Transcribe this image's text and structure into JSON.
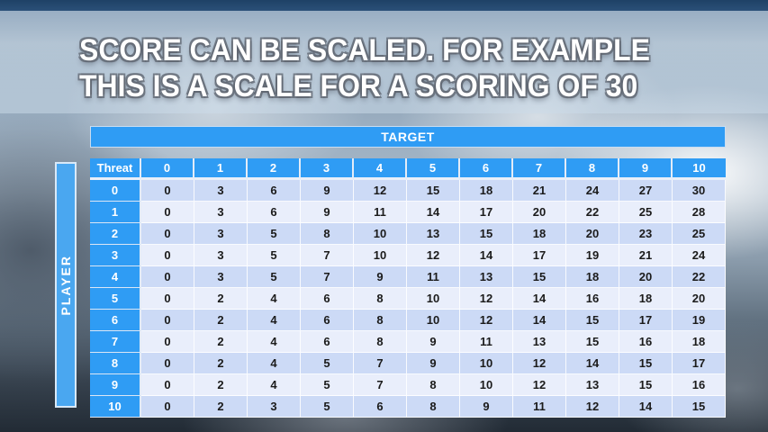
{
  "slide": {
    "title_line1": "SCORE CAN BE SCALED. FOR EXAMPLE",
    "title_line2": "THIS IS A SCALE FOR A SCORING OF 30"
  },
  "table": {
    "target_label": "TARGET",
    "player_label": "PLAYER",
    "threat_label": "Threat",
    "column_headers": [
      "0",
      "1",
      "2",
      "3",
      "4",
      "5",
      "6",
      "7",
      "8",
      "9",
      "10"
    ],
    "row_headers": [
      "0",
      "1",
      "2",
      "3",
      "4",
      "5",
      "6",
      "7",
      "8",
      "9",
      "10"
    ],
    "rows": [
      [
        0,
        3,
        6,
        9,
        12,
        15,
        18,
        21,
        24,
        27,
        30
      ],
      [
        0,
        3,
        6,
        9,
        11,
        14,
        17,
        20,
        22,
        25,
        28
      ],
      [
        0,
        3,
        5,
        8,
        10,
        13,
        15,
        18,
        20,
        23,
        25
      ],
      [
        0,
        3,
        5,
        7,
        10,
        12,
        14,
        17,
        19,
        21,
        24
      ],
      [
        0,
        3,
        5,
        7,
        9,
        11,
        13,
        15,
        18,
        20,
        22
      ],
      [
        0,
        2,
        4,
        6,
        8,
        10,
        12,
        14,
        16,
        18,
        20
      ],
      [
        0,
        2,
        4,
        6,
        8,
        10,
        12,
        14,
        15,
        17,
        19
      ],
      [
        0,
        2,
        4,
        6,
        8,
        9,
        11,
        13,
        15,
        16,
        18
      ],
      [
        0,
        2,
        4,
        5,
        7,
        9,
        10,
        12,
        14,
        15,
        17
      ],
      [
        0,
        2,
        4,
        5,
        7,
        8,
        10,
        12,
        13,
        15,
        16
      ],
      [
        0,
        2,
        3,
        5,
        6,
        8,
        9,
        11,
        12,
        14,
        15
      ]
    ]
  },
  "colors": {
    "header_blue": "#2f9cf4",
    "player_blue": "#4aa7f0",
    "row_even": "#ccdaf6",
    "row_odd": "#e9eefb",
    "cell_text": "#1b1b1b"
  }
}
